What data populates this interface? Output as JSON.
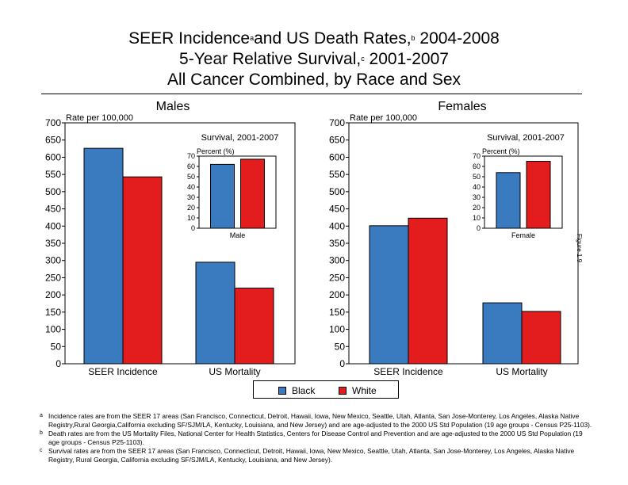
{
  "title": {
    "line1_a": "SEER Incidence",
    "line1_sup_a": "a",
    "line1_b": "and US Death Rates,",
    "line1_sup_b": "b",
    "line1_c": " 2004-2008",
    "line2_a": "5-Year Relative Survival,",
    "line2_sup": "c",
    "line2_b": " 2001-2007",
    "line3": "All Cancer Combined, by Race and Sex"
  },
  "colors": {
    "black_series": "#3a7bbf",
    "white_series": "#e31d1d"
  },
  "figure_label": "Figure 1.9",
  "legend": [
    {
      "label": "Black",
      "color": "#3a7bbf"
    },
    {
      "label": "White",
      "color": "#e31d1d"
    }
  ],
  "chart_data": [
    {
      "type": "bar",
      "title": "Males",
      "ylabel": "Rate per 100,000",
      "ylim": [
        0,
        700
      ],
      "yticks": [
        0,
        50,
        100,
        150,
        200,
        250,
        300,
        350,
        400,
        450,
        500,
        550,
        600,
        650,
        700
      ],
      "categories": [
        "SEER Incidence",
        "US Mortality"
      ],
      "series": [
        {
          "name": "Black",
          "values": [
            626,
            295
          ]
        },
        {
          "name": "White",
          "values": [
            543,
            220
          ]
        }
      ],
      "inset": {
        "type": "bar",
        "title": "Survival, 2001-2007",
        "ylabel": "Percent (%)",
        "ylim": [
          0,
          70
        ],
        "yticks": [
          0,
          10,
          20,
          30,
          40,
          50,
          60,
          70
        ],
        "categories": [
          "Male"
        ],
        "series": [
          {
            "name": "Black",
            "values": [
              62
            ]
          },
          {
            "name": "White",
            "values": [
              67
            ]
          }
        ]
      }
    },
    {
      "type": "bar",
      "title": "Females",
      "ylabel": "Rate per 100,000",
      "ylim": [
        0,
        700
      ],
      "yticks": [
        0,
        50,
        100,
        150,
        200,
        250,
        300,
        350,
        400,
        450,
        500,
        550,
        600,
        650,
        700
      ],
      "categories": [
        "SEER Incidence",
        "US Mortality"
      ],
      "series": [
        {
          "name": "Black",
          "values": [
            401,
            177
          ]
        },
        {
          "name": "White",
          "values": [
            423,
            152
          ]
        }
      ],
      "inset": {
        "type": "bar",
        "title": "Survival, 2001-2007",
        "ylabel": "Percent (%)",
        "ylim": [
          0,
          70
        ],
        "yticks": [
          0,
          10,
          20,
          30,
          40,
          50,
          60,
          70
        ],
        "categories": [
          "Female"
        ],
        "series": [
          {
            "name": "Black",
            "values": [
              54
            ]
          },
          {
            "name": "White",
            "values": [
              65
            ]
          }
        ]
      }
    }
  ],
  "footnotes": [
    {
      "marker": "a",
      "text": "Incidence rates are from the SEER 17 areas (San Francisco, Connecticut, Detroit, Hawaii, Iowa, New Mexico, Seattle, Utah, Atlanta, San Jose-Monterey, Los Angeles, Alaska Native Registry,Rural Georgia,California excluding SF/SJM/LA, Kentucky, Louisiana, and New Jersey) and are age-adjusted to the 2000 US Std Population (19 age groups - Census P25-1103)."
    },
    {
      "marker": "b",
      "text": "Death rates are from the US Mortality Files, National Center for Health Statistics, Centers for Disease Control and Prevention and are age-adjusted to the 2000 US Std Population (19 age groups - Census P25-1103)."
    },
    {
      "marker": "c",
      "text": "Survival rates are from the SEER 17 areas (San Francisco, Connecticut, Detroit, Hawaii, Iowa, New Mexico, Seattle, Utah, Atlanta, San Jose-Monterey, Los Angeles, Alaska Native Registry, Rural Georgia, California excluding SF/SJM/LA, Kentucky, Louisiana, and New Jersey)."
    }
  ]
}
